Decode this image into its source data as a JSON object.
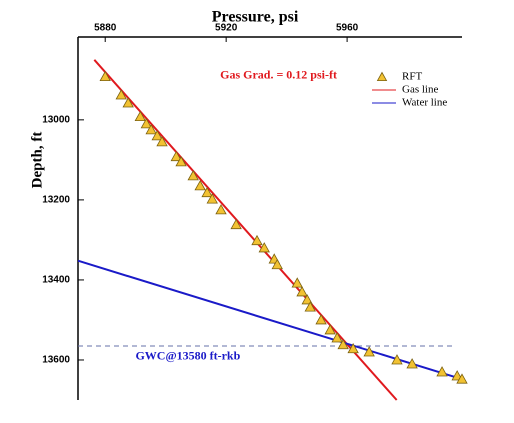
{
  "chart_data": {
    "type": "scatter",
    "title": "Pressure, psi",
    "y_label": "Depth, ft",
    "xaxis_position": "top",
    "y_inverted": true,
    "xlim": [
      5871,
      5998
    ],
    "ylim": [
      12793,
      13700
    ],
    "xticks": [
      5880,
      5920,
      5960
    ],
    "yticks": [
      13000,
      13200,
      13400,
      13600
    ],
    "legend_position": "upper right",
    "series": [
      {
        "name": "RFT",
        "kind": "marker",
        "color": "#f2c232",
        "x": [
          5880,
          5885.3,
          5887.6,
          5891.6,
          5893.6,
          5895.2,
          5897.2,
          5898.8,
          5903.5,
          5905.1,
          5909.1,
          5911.4,
          5913.7,
          5915.4,
          5918.3,
          5923.3,
          5930.2,
          5932.6,
          5935.9,
          5936.9,
          5943.5,
          5945.1,
          5946.8,
          5947.8,
          5951.4,
          5954.4,
          5956.7,
          5958.7,
          5962,
          5967.3,
          5976.5,
          5981.5,
          5991.4,
          5996.4,
          5998
        ],
        "values": [
          12892,
          12938,
          12958,
          12992,
          13010,
          13025,
          13040,
          13055,
          13092,
          13105,
          13140,
          13165,
          13182,
          13198,
          13225,
          13262,
          13302,
          13320,
          13348,
          13362,
          13408,
          13430,
          13450,
          13468,
          13500,
          13525,
          13545,
          13562,
          13572,
          13580,
          13600,
          13610,
          13630,
          13640,
          13648
        ]
      },
      {
        "name": "Gas line",
        "kind": "line",
        "color": "#e0191e",
        "x": [
          5876.4,
          5976.4
        ],
        "values": [
          12850,
          13700
        ]
      },
      {
        "name": "Water line",
        "kind": "line",
        "color": "#1a1ac8",
        "x": [
          5871,
          5998
        ],
        "values": [
          13352,
          13648
        ]
      }
    ],
    "reference_lines": [
      {
        "value": 13565,
        "color": "#6670a8"
      }
    ],
    "annotations": [
      {
        "text": "Gas Grad. = 0.12 psi-ft",
        "color": "#e0191e",
        "x": 5918,
        "y": 12890
      },
      {
        "text": "GWC@13580 ft-rkb",
        "color": "#1a1ac8",
        "x": 5890,
        "y": 13592
      }
    ]
  }
}
